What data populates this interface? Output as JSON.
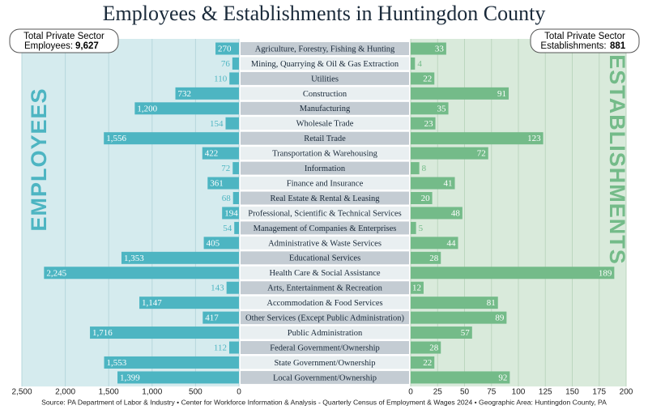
{
  "chart_data": {
    "type": "butterfly",
    "title": "Employees & Establishments in Huntingdon County",
    "left_box": {
      "label": "Total Private Sector",
      "label2": "Employees:",
      "total": "9,627"
    },
    "right_box": {
      "label": "Total Private Sector",
      "label2": "Establishments:",
      "total": "881"
    },
    "source": "Source: PA Department of Labor & Industry • Center for Workforce Information & Analysis - Quarterly Census of Employment & Wages 2024 • Geographic Area: Huntingdon County, PA",
    "categories": [
      "Agriculture, Forestry, Fishing & Hunting",
      "Mining, Quarrying & Oil & Gas Extraction",
      "Utilities",
      "Construction",
      "Manufacturing",
      "Wholesale Trade",
      "Retail Trade",
      "Transportation & Warehousing",
      "Information",
      "Finance and Insurance",
      "Real Estate & Rental & Leasing",
      "Professional, Scientific & Technical Services",
      "Management of Companies & Enterprises",
      "Administrative & Waste Services",
      "Educational Services",
      "Health Care & Social Assistance",
      "Arts, Entertainment & Recreation",
      "Accommodation & Food Services",
      "Other Services (Except Public Administration)",
      "Public Administration",
      "Federal Government/Ownership",
      "State Government/Ownership",
      "Local Government/Ownership"
    ],
    "series": [
      {
        "name": "EMPLOYEES",
        "color": "#4db5c2",
        "values": [
          270,
          76,
          110,
          732,
          1200,
          154,
          1556,
          422,
          72,
          361,
          68,
          194,
          54,
          405,
          1353,
          2245,
          143,
          1147,
          417,
          1716,
          112,
          1553,
          1399
        ],
        "value_labels": [
          "270",
          "76",
          "110",
          "732",
          "1,200",
          "154",
          "1,556",
          "422",
          "72",
          "361",
          "68",
          "194",
          "54",
          "405",
          "1,353",
          "2,245",
          "143",
          "1,147",
          "417",
          "1,716",
          "112",
          "1,553",
          "1,399"
        ],
        "xlim": [
          0,
          2500
        ],
        "xticks": [
          {
            "value": 2500,
            "label": "2,500"
          },
          {
            "value": 2000,
            "label": "2,000"
          },
          {
            "value": 1500,
            "label": "1,500"
          },
          {
            "value": 1000,
            "label": "1,000"
          },
          500,
          0
        ]
      },
      {
        "name": "ESTABLISHMENTS",
        "color": "#74bb89",
        "values": [
          33,
          4,
          22,
          91,
          35,
          23,
          123,
          72,
          8,
          41,
          20,
          48,
          5,
          44,
          28,
          189,
          12,
          81,
          89,
          57,
          28,
          22,
          92
        ],
        "xlim": [
          0,
          200
        ],
        "xticks": [
          0,
          25,
          50,
          75,
          100,
          125,
          150,
          175,
          200
        ]
      }
    ],
    "grid": true
  }
}
